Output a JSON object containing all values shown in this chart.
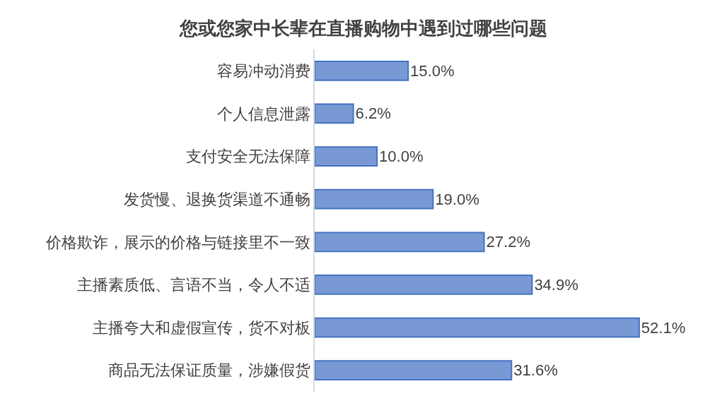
{
  "chart_data": {
    "type": "bar",
    "orientation": "horizontal",
    "title": "您或您家中长辈在直播购物中遇到过哪些问题",
    "categories": [
      "容易冲动消费",
      "个人信息泄露",
      "支付安全无法保障",
      "发货慢、退换货渠道不通畅",
      "价格欺诈，展示的价格与链接里不一致",
      "主播素质低、言语不当，令人不适",
      "主播夸大和虚假宣传，货不对板",
      "商品无法保证质量，涉嫌假货"
    ],
    "values": [
      15.0,
      6.2,
      10.0,
      19.0,
      27.2,
      34.9,
      52.1,
      31.6
    ],
    "value_labels": [
      "15.0%",
      "6.2%",
      "10.0%",
      "19.0%",
      "27.2%",
      "34.9%",
      "52.1%",
      "31.6%"
    ],
    "color": "#4472c4",
    "tick_labels": "y"
  }
}
